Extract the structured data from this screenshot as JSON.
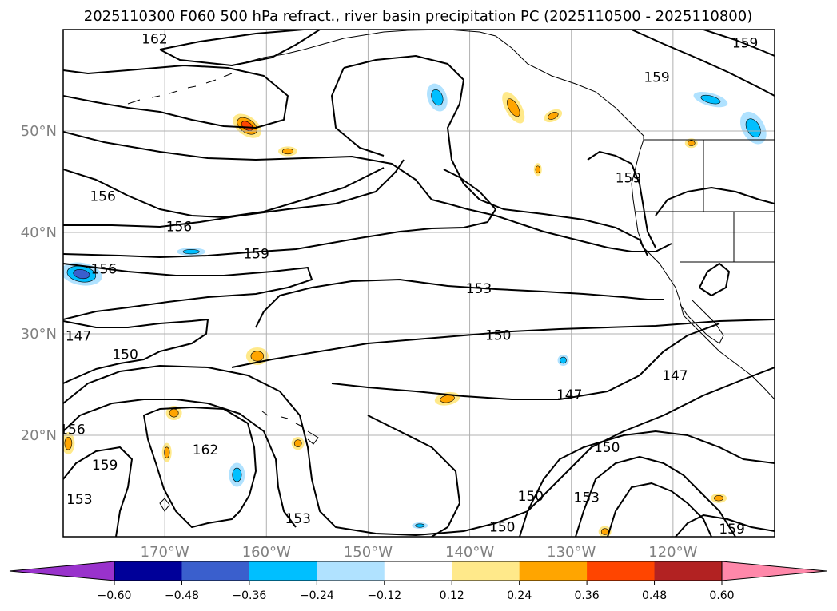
{
  "title": "2025110300 F060 500 hPa refract., river basin precipitation PC (2025110500 - 2025110800)",
  "map": {
    "lon_range": [
      -180,
      -110
    ],
    "lat_range": [
      10,
      60
    ],
    "lat_ticks": [
      {
        "value": 20,
        "label": "20°N"
      },
      {
        "value": 30,
        "label": "30°N"
      },
      {
        "value": 40,
        "label": "40°N"
      },
      {
        "value": 50,
        "label": "50°N"
      }
    ],
    "lon_ticks": [
      {
        "value": -170,
        "label": "170°W"
      },
      {
        "value": -160,
        "label": "160°W"
      },
      {
        "value": -150,
        "label": "150°W"
      },
      {
        "value": -140,
        "label": "140°W"
      },
      {
        "value": -130,
        "label": "130°W"
      },
      {
        "value": -120,
        "label": "120°W"
      }
    ],
    "contour_labels": [
      {
        "text": "162",
        "lon": -171,
        "lat": 59.1
      },
      {
        "text": "159",
        "lon": -112.9,
        "lat": 58.7
      },
      {
        "text": "159",
        "lon": -121.6,
        "lat": 55.3
      },
      {
        "text": "159",
        "lon": -124.4,
        "lat": 45.4
      },
      {
        "text": "156",
        "lon": -176.1,
        "lat": 43.6
      },
      {
        "text": "156",
        "lon": -168.6,
        "lat": 40.6
      },
      {
        "text": "159",
        "lon": -161.0,
        "lat": 37.9
      },
      {
        "text": "156",
        "lon": -176.0,
        "lat": 36.4
      },
      {
        "text": "153",
        "lon": -139.1,
        "lat": 34.5
      },
      {
        "text": "147",
        "lon": -178.5,
        "lat": 29.8
      },
      {
        "text": "150",
        "lon": -173.9,
        "lat": 28.0
      },
      {
        "text": "150",
        "lon": -137.2,
        "lat": 29.9
      },
      {
        "text": "147",
        "lon": -130.2,
        "lat": 24.0
      },
      {
        "text": "147",
        "lon": -119.8,
        "lat": 25.9
      },
      {
        "text": "156",
        "lon": -179.1,
        "lat": 20.6
      },
      {
        "text": "162",
        "lon": -166.0,
        "lat": 18.6
      },
      {
        "text": "159",
        "lon": -175.9,
        "lat": 17.1
      },
      {
        "text": "150",
        "lon": -126.5,
        "lat": 18.8
      },
      {
        "text": "153",
        "lon": -178.4,
        "lat": 13.7
      },
      {
        "text": "150",
        "lon": -134.0,
        "lat": 14.0
      },
      {
        "text": "153",
        "lon": -156.9,
        "lat": 11.8
      },
      {
        "text": "153",
        "lon": -128.5,
        "lat": 13.9
      },
      {
        "text": "150",
        "lon": -136.8,
        "lat": 11.0
      },
      {
        "text": "159",
        "lon": -114.2,
        "lat": 10.8
      }
    ],
    "contour_color": "#000000",
    "gridline_color": "#b0b0b0"
  },
  "colorbar": {
    "ticks": [
      "−0.60",
      "−0.48",
      "−0.36",
      "−0.24",
      "−0.12",
      "0.12",
      "0.24",
      "0.36",
      "0.48",
      "0.60"
    ],
    "under_color": "#9932cc",
    "over_color": "#ff88aa",
    "segments": [
      "#000099",
      "#3a5fcd",
      "#00bfff",
      "#b0e2ff",
      "#ffffff",
      "#ffe98a",
      "#ffa500",
      "#ff4500",
      "#b22222"
    ]
  },
  "anomalies": [
    {
      "lon": -161.9,
      "lat": 50.5,
      "rx": 20,
      "ry": 12,
      "rot": 35,
      "colors": [
        "#ffe98a",
        "#ffa500",
        "#ff4500"
      ]
    },
    {
      "lon": -143.2,
      "lat": 53.3,
      "rx": 12,
      "ry": 18,
      "rot": -20,
      "colors": [
        "#b0e2ff",
        "#00bfff"
      ]
    },
    {
      "lon": -135.7,
      "lat": 52.3,
      "rx": 10,
      "ry": 22,
      "rot": -30,
      "colors": [
        "#ffe98a",
        "#ffa500"
      ]
    },
    {
      "lon": -131.8,
      "lat": 51.5,
      "rx": 12,
      "ry": 7,
      "rot": -25,
      "colors": [
        "#ffe98a",
        "#ffa500"
      ]
    },
    {
      "lon": -116.3,
      "lat": 53.1,
      "rx": 22,
      "ry": 8,
      "rot": 15,
      "colors": [
        "#b0e2ff",
        "#00bfff"
      ]
    },
    {
      "lon": -112.1,
      "lat": 50.3,
      "rx": 14,
      "ry": 22,
      "rot": -30,
      "colors": [
        "#b0e2ff",
        "#00bfff"
      ]
    },
    {
      "lon": -157.9,
      "lat": 48.0,
      "rx": 12,
      "ry": 6,
      "rot": 0,
      "colors": [
        "#ffe98a",
        "#ffa500"
      ]
    },
    {
      "lon": -118.2,
      "lat": 48.8,
      "rx": 8,
      "ry": 6,
      "rot": 0,
      "colors": [
        "#ffe98a",
        "#ffa500"
      ]
    },
    {
      "lon": -133.3,
      "lat": 46.2,
      "rx": 5,
      "ry": 8,
      "rot": 0,
      "colors": [
        "#ffe98a",
        "#ffa500"
      ]
    },
    {
      "lon": -178.2,
      "lat": 35.9,
      "rx": 26,
      "ry": 14,
      "rot": 10,
      "colors": [
        "#b0e2ff",
        "#00bfff",
        "#3a5fcd"
      ]
    },
    {
      "lon": -167.4,
      "lat": 38.1,
      "rx": 18,
      "ry": 5,
      "rot": 0,
      "colors": [
        "#b0e2ff",
        "#00bfff"
      ]
    },
    {
      "lon": -160.9,
      "lat": 27.8,
      "rx": 14,
      "ry": 11,
      "rot": 0,
      "colors": [
        "#ffe98a",
        "#ffa500"
      ]
    },
    {
      "lon": -142.2,
      "lat": 23.6,
      "rx": 16,
      "ry": 8,
      "rot": -10,
      "colors": [
        "#ffe98a",
        "#ffa500"
      ]
    },
    {
      "lon": -169.1,
      "lat": 22.2,
      "rx": 10,
      "ry": 9,
      "rot": 0,
      "colors": [
        "#ffe98a",
        "#ffa500"
      ]
    },
    {
      "lon": -169.8,
      "lat": 18.3,
      "rx": 6,
      "ry": 12,
      "rot": 0,
      "colors": [
        "#ffe98a",
        "#ffa500"
      ]
    },
    {
      "lon": -162.9,
      "lat": 16.1,
      "rx": 10,
      "ry": 15,
      "rot": 0,
      "colors": [
        "#b0e2ff",
        "#00bfff"
      ]
    },
    {
      "lon": -179.5,
      "lat": 19.2,
      "rx": 8,
      "ry": 14,
      "rot": 0,
      "colors": [
        "#ffe98a",
        "#ffa500"
      ]
    },
    {
      "lon": -156.9,
      "lat": 19.2,
      "rx": 8,
      "ry": 8,
      "rot": 0,
      "colors": [
        "#ffe98a",
        "#ffa500"
      ]
    },
    {
      "lon": -115.5,
      "lat": 13.8,
      "rx": 10,
      "ry": 6,
      "rot": 0,
      "colors": [
        "#ffe98a",
        "#ffa500"
      ]
    },
    {
      "lon": -126.7,
      "lat": 10.5,
      "rx": 8,
      "ry": 7,
      "rot": 0,
      "colors": [
        "#ffe98a",
        "#ffa500"
      ]
    },
    {
      "lon": -144.9,
      "lat": 11.1,
      "rx": 10,
      "ry": 4,
      "rot": 0,
      "colors": [
        "#b0e2ff",
        "#00bfff"
      ]
    },
    {
      "lon": -130.8,
      "lat": 27.4,
      "rx": 7,
      "ry": 7,
      "rot": 0,
      "colors": [
        "#b0e2ff",
        "#00bfff"
      ]
    }
  ]
}
